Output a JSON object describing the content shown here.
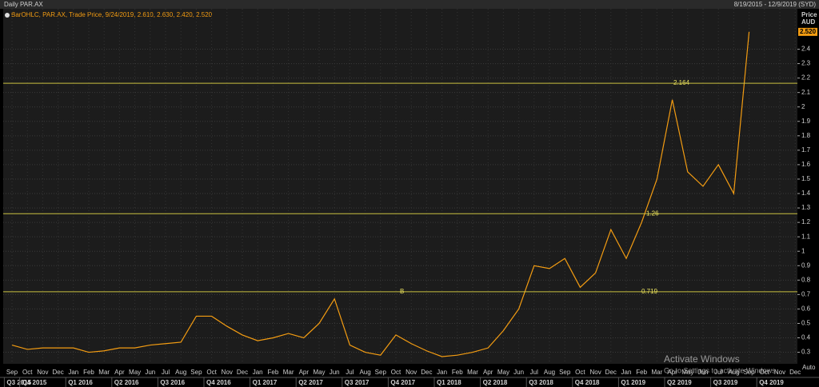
{
  "chart_data": {
    "type": "line",
    "title": "Daily PAR.AX",
    "date_range": "8/19/2015 - 12/9/2019 (SYD)",
    "legend_text": "BarOHLC, PAR.AX, Trade Price, 9/24/2019, 2.610, 2.630, 2.420, 2.520",
    "y_axis_title": "Price",
    "y_axis_unit": "AUD",
    "scale_mode": "Auto",
    "watermark": [
      "Activate Windows",
      "Go to Settings to activate Windows."
    ],
    "annotation": "B",
    "months": [
      "Sep",
      "Oct",
      "Nov",
      "Dec",
      "Jan",
      "Feb",
      "Mar",
      "Apr",
      "May",
      "Jun",
      "Jul",
      "Aug",
      "Sep",
      "Oct",
      "Nov",
      "Dec",
      "Jan",
      "Feb",
      "Mar",
      "Apr",
      "May",
      "Jun",
      "Jul",
      "Aug",
      "Sep",
      "Oct",
      "Nov",
      "Dec",
      "Jan",
      "Feb",
      "Mar",
      "Apr",
      "May",
      "Jun",
      "Jul",
      "Aug",
      "Sep",
      "Oct",
      "Nov",
      "Dec",
      "Jan",
      "Feb",
      "Mar",
      "Apr",
      "May",
      "Jun",
      "Jul",
      "Aug",
      "Sep",
      "Oct",
      "Nov",
      "Dec"
    ],
    "quarters": [
      "Q3 2015",
      "Q4 2015",
      "Q1 2016",
      "Q2 2016",
      "Q3 2016",
      "Q4 2016",
      "Q1 2017",
      "Q2 2017",
      "Q3 2017",
      "Q4 2017",
      "Q1 2018",
      "Q2 2018",
      "Q3 2018",
      "Q4 2018",
      "Q1 2019",
      "Q2 2019",
      "Q3 2019",
      "Q4 2019"
    ],
    "series": [
      {
        "name": "PAR.AX",
        "color": "#f39c12",
        "x": [
          "2015-09",
          "2015-10",
          "2015-11",
          "2015-12",
          "2016-01",
          "2016-02",
          "2016-03",
          "2016-04",
          "2016-05",
          "2016-06",
          "2016-07",
          "2016-08",
          "2016-09",
          "2016-10",
          "2016-11",
          "2016-12",
          "2017-01",
          "2017-02",
          "2017-03",
          "2017-04",
          "2017-05",
          "2017-06",
          "2017-07",
          "2017-08",
          "2017-09",
          "2017-10",
          "2017-11",
          "2017-12",
          "2018-01",
          "2018-02",
          "2018-03",
          "2018-04",
          "2018-05",
          "2018-06",
          "2018-07",
          "2018-08",
          "2018-09",
          "2018-10",
          "2018-11",
          "2018-12",
          "2019-01",
          "2019-02",
          "2019-03",
          "2019-04",
          "2019-05",
          "2019-06",
          "2019-07",
          "2019-08",
          "2019-09"
        ],
        "values": [
          0.35,
          0.32,
          0.33,
          0.33,
          0.33,
          0.3,
          0.31,
          0.33,
          0.33,
          0.35,
          0.36,
          0.37,
          0.55,
          0.55,
          0.48,
          0.42,
          0.38,
          0.4,
          0.43,
          0.4,
          0.5,
          0.67,
          0.35,
          0.3,
          0.28,
          0.42,
          0.36,
          0.31,
          0.27,
          0.28,
          0.3,
          0.33,
          0.45,
          0.6,
          0.9,
          0.88,
          0.95,
          0.75,
          0.85,
          1.15,
          0.95,
          1.2,
          1.5,
          2.05,
          1.55,
          1.45,
          1.6,
          1.4,
          2.52
        ]
      }
    ],
    "levels": [
      2.164,
      1.26,
      0.719
    ],
    "last_price": {
      "value": 2.52,
      "label": "2.520"
    },
    "ylim": [
      0.22,
      2.68
    ],
    "yticks": [
      0.3,
      0.4,
      0.5,
      0.6,
      0.7,
      0.8,
      0.9,
      1,
      1.1,
      1.2,
      1.3,
      1.4,
      1.5,
      1.6,
      1.7,
      1.8,
      1.9,
      2,
      2.1,
      2.2,
      2.3,
      2.4
    ],
    "grid": true
  }
}
